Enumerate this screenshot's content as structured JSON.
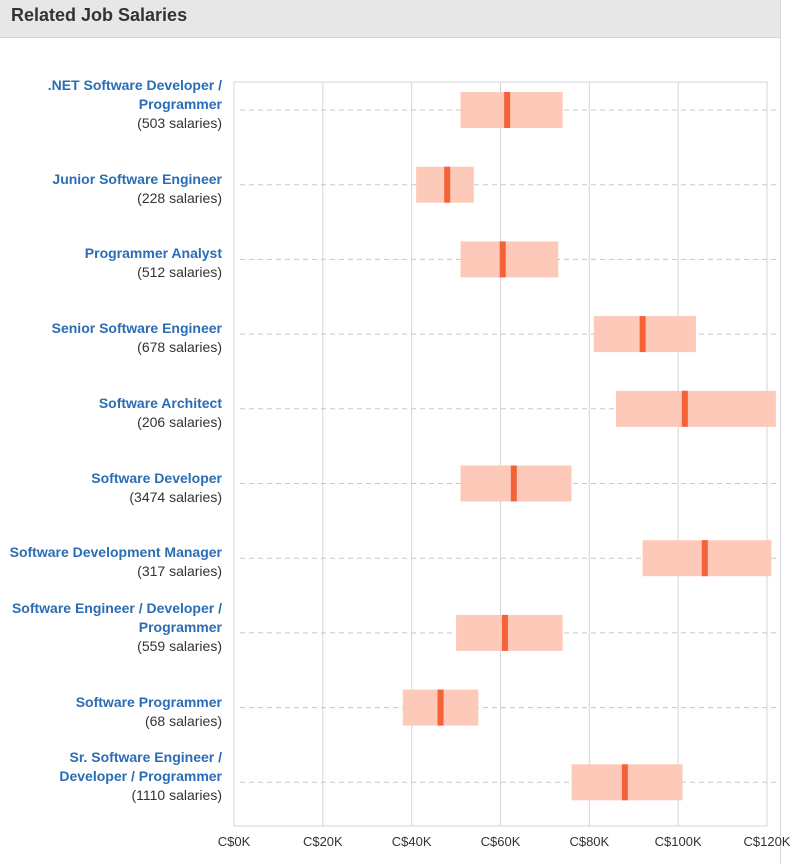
{
  "header": {
    "title": "Related Job Salaries"
  },
  "chart_data": {
    "type": "bar",
    "orientation": "horizontal-range",
    "xlim": [
      0,
      120000
    ],
    "x_ticks": [
      "C$0K",
      "C$20K",
      "C$40K",
      "C$60K",
      "C$80K",
      "C$100K",
      "C$120K"
    ],
    "grid": true,
    "colors": {
      "range": "#fdcab9",
      "median": "#f4623a",
      "grid": "#d6d6d6",
      "dashed": "#c8c8c8"
    },
    "jobs": [
      {
        "title": ".NET Software Developer / Programmer",
        "count": "(503 salaries)",
        "low": 51000,
        "median": 61500,
        "high": 74000
      },
      {
        "title": "Junior Software Engineer",
        "count": "(228 salaries)",
        "low": 41000,
        "median": 48000,
        "high": 54000
      },
      {
        "title": "Programmer Analyst",
        "count": "(512 salaries)",
        "low": 51000,
        "median": 60500,
        "high": 73000
      },
      {
        "title": "Senior Software Engineer",
        "count": "(678 salaries)",
        "low": 81000,
        "median": 92000,
        "high": 104000
      },
      {
        "title": "Software Architect",
        "count": "(206 salaries)",
        "low": 86000,
        "median": 101500,
        "high": 122000
      },
      {
        "title": "Software Developer",
        "count": "(3474 salaries)",
        "low": 51000,
        "median": 63000,
        "high": 76000
      },
      {
        "title": "Software Development Manager",
        "count": "(317 salaries)",
        "low": 92000,
        "median": 106000,
        "high": 121000
      },
      {
        "title": "Software Engineer / Developer / Programmer",
        "count": "(559 salaries)",
        "low": 50000,
        "median": 61000,
        "high": 74000
      },
      {
        "title": "Software Programmer",
        "count": "(68 salaries)",
        "low": 38000,
        "median": 46500,
        "high": 55000
      },
      {
        "title": "Sr. Software Engineer / Developer / Programmer",
        "count": "(1110 salaries)",
        "low": 76000,
        "median": 88000,
        "high": 101000
      }
    ]
  }
}
